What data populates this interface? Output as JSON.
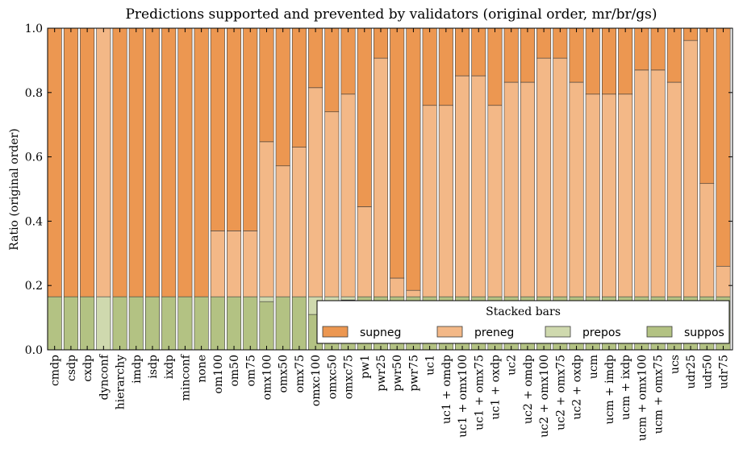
{
  "chart_data": {
    "type": "bar",
    "stacked": true,
    "title": "Predictions supported and prevented by validators (original order, mr/br/gs)",
    "xlabel": "",
    "ylabel": "Ratio (original order)",
    "ylim": [
      0,
      1
    ],
    "yticks": [
      "0.0",
      "0.2",
      "0.4",
      "0.6",
      "0.8",
      "1.0"
    ],
    "grid": false,
    "legend": {
      "title": "Stacked bars",
      "position": "lower-right"
    },
    "categories": [
      "cmdp",
      "csdp",
      "cxdp",
      "dynconf",
      "hierarchy",
      "imdp",
      "isdp",
      "ixdp",
      "minconf",
      "none",
      "om100",
      "om50",
      "om75",
      "omx100",
      "omx50",
      "omx75",
      "omxc100",
      "omxc50",
      "omxc75",
      "pw1",
      "pwr25",
      "pwr50",
      "pwr75",
      "uc1",
      "uc1 + omdp",
      "uc1 + omx100",
      "uc1 + omx75",
      "uc1 + oxdp",
      "uc2",
      "uc2 + omdp",
      "uc2 + omx100",
      "uc2 + omx75",
      "uc2 + oxdp",
      "ucm",
      "ucm + imdp",
      "ucm + ixdp",
      "ucm + omx100",
      "ucm + omx75",
      "ucs",
      "udr25",
      "udr50",
      "udr75"
    ],
    "series": [
      {
        "name": "suppos",
        "color": "#b3c283",
        "values": [
          0.165,
          0.165,
          0.165,
          0,
          0.165,
          0.165,
          0.165,
          0.165,
          0.165,
          0.165,
          0.165,
          0.165,
          0.165,
          0.15,
          0.165,
          0.165,
          0.11,
          0.13,
          0.155,
          0.165,
          0.165,
          0.165,
          0.165,
          0.165,
          0.165,
          0.165,
          0.165,
          0.165,
          0.165,
          0.165,
          0.165,
          0.165,
          0.165,
          0.165,
          0.165,
          0.165,
          0.165,
          0.165,
          0.165,
          0.165,
          0.165,
          0.165
        ]
      },
      {
        "name": "prepos",
        "color": "#cfd9ae",
        "values": [
          0,
          0,
          0,
          0.165,
          0,
          0,
          0,
          0,
          0,
          0,
          0,
          0,
          0,
          0.015,
          0,
          0,
          0.055,
          0.035,
          0.01,
          0,
          0,
          0,
          0,
          0,
          0,
          0,
          0,
          0,
          0,
          0,
          0,
          0,
          0,
          0,
          0,
          0,
          0,
          0,
          0,
          0,
          0,
          0
        ]
      },
      {
        "name": "preneg",
        "color": "#f3b887",
        "values": [
          0,
          0,
          0,
          0.835,
          0,
          0,
          0,
          0,
          0,
          0,
          0.205,
          0.205,
          0.205,
          0.482,
          0.407,
          0.465,
          0.65,
          0.575,
          0.63,
          0.28,
          0.742,
          0.058,
          0.02,
          0.595,
          0.595,
          0.687,
          0.687,
          0.595,
          0.667,
          0.667,
          0.742,
          0.742,
          0.667,
          0.63,
          0.63,
          0.63,
          0.705,
          0.705,
          0.667,
          0.797,
          0.352,
          0.095
        ]
      },
      {
        "name": "supneg",
        "color": "#ec9751",
        "values": [
          0.835,
          0.835,
          0.835,
          0,
          0.835,
          0.835,
          0.835,
          0.835,
          0.835,
          0.835,
          0.63,
          0.63,
          0.63,
          0.353,
          0.428,
          0.37,
          0.185,
          0.26,
          0.205,
          0.555,
          0.093,
          0.777,
          0.815,
          0.24,
          0.24,
          0.148,
          0.148,
          0.24,
          0.168,
          0.168,
          0.093,
          0.093,
          0.168,
          0.205,
          0.205,
          0.205,
          0.13,
          0.13,
          0.168,
          0.038,
          0.483,
          0.74
        ]
      }
    ],
    "legend_order": [
      "supneg",
      "preneg",
      "prepos",
      "suppos"
    ]
  }
}
